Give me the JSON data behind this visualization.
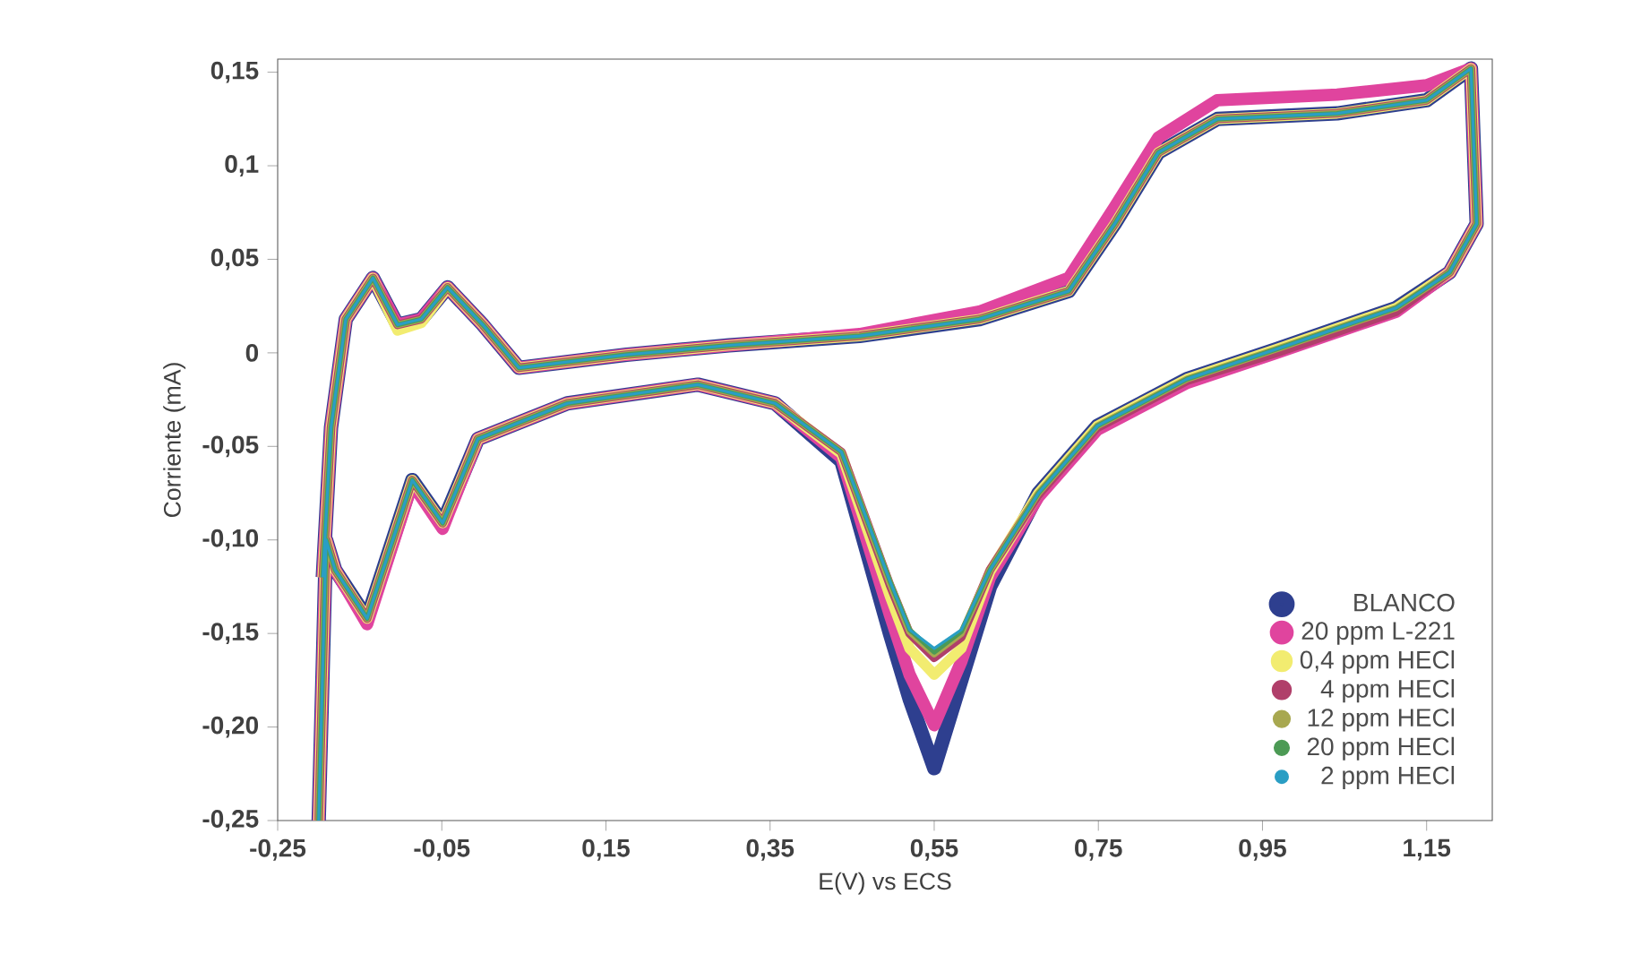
{
  "chart_data": {
    "type": "line",
    "xlabel": "E(V) vs ECS",
    "ylabel": "Corriente (mA)",
    "xlim": [
      -0.25,
      1.23
    ],
    "ylim": [
      -0.25,
      0.157
    ],
    "xticks": [
      {
        "value": -0.25,
        "label": "-0,25"
      },
      {
        "value": -0.05,
        "label": "-0,05"
      },
      {
        "value": 0.15,
        "label": "0,15"
      },
      {
        "value": 0.35,
        "label": "0,35"
      },
      {
        "value": 0.55,
        "label": "0,55"
      },
      {
        "value": 0.75,
        "label": "0,75"
      },
      {
        "value": 0.95,
        "label": "0,95"
      },
      {
        "value": 1.15,
        "label": "1,15"
      }
    ],
    "yticks": [
      {
        "value": 0.15,
        "label": "0,15"
      },
      {
        "value": 0.1,
        "label": "0,1"
      },
      {
        "value": 0.05,
        "label": "0,05"
      },
      0,
      {
        "value": -0.05,
        "label": "-0,05"
      },
      {
        "value": -0.1,
        "label": "-0,10"
      },
      {
        "value": -0.15,
        "label": "-0,15"
      },
      {
        "value": -0.2,
        "label": "-0,20"
      },
      {
        "value": -0.25,
        "label": "-0,25"
      }
    ],
    "x": [
      -0.195,
      -0.185,
      -0.167,
      -0.134,
      -0.104,
      -0.075,
      -0.043,
      0.0,
      0.044,
      0.175,
      0.3,
      0.459,
      0.605,
      0.714,
      0.77,
      0.823,
      0.895,
      1.041,
      1.15,
      1.204,
      1.211,
      1.178,
      1.113,
      0.967,
      0.858,
      0.749,
      0.677,
      0.618,
      0.583,
      0.55,
      0.52,
      0.496,
      0.437,
      0.356,
      0.262,
      0.103,
      -0.006,
      -0.049,
      -0.086,
      -0.141,
      -0.18,
      -0.191,
      -0.2
    ],
    "legend": "bottom right",
    "grid": false,
    "series": [
      {
        "name": "BLANCO",
        "color": "#2e3f8f",
        "values": [
          -0.12,
          -0.04,
          0.018,
          0.04,
          0.015,
          0.018,
          0.035,
          0.015,
          -0.008,
          -0.001,
          0.004,
          0.009,
          0.018,
          0.033,
          0.069,
          0.107,
          0.125,
          0.128,
          0.135,
          0.152,
          0.069,
          0.043,
          0.024,
          0.002,
          -0.014,
          -0.039,
          -0.075,
          -0.125,
          -0.175,
          -0.222,
          -0.185,
          -0.15,
          -0.058,
          -0.027,
          -0.017,
          -0.027,
          -0.046,
          -0.091,
          -0.068,
          -0.142,
          -0.116,
          -0.1,
          -0.25
        ]
      },
      {
        "name": "20 ppm L-221",
        "color": "#e0449e",
        "values": [
          -0.12,
          -0.04,
          0.018,
          0.04,
          0.015,
          0.018,
          0.035,
          0.015,
          -0.008,
          -0.001,
          0.004,
          0.01,
          0.022,
          0.04,
          0.078,
          0.115,
          0.135,
          0.138,
          0.143,
          0.152,
          0.069,
          0.043,
          0.022,
          0.0,
          -0.016,
          -0.041,
          -0.077,
          -0.12,
          -0.165,
          -0.199,
          -0.172,
          -0.14,
          -0.056,
          -0.027,
          -0.017,
          -0.027,
          -0.046,
          -0.094,
          -0.07,
          -0.145,
          -0.116,
          -0.1,
          -0.25
        ]
      },
      {
        "name": "0,4 ppm HECl",
        "color": "#f2ec70",
        "values": [
          -0.12,
          -0.04,
          0.018,
          0.04,
          0.012,
          0.016,
          0.035,
          0.015,
          -0.008,
          -0.001,
          0.004,
          0.009,
          0.018,
          0.033,
          0.069,
          0.107,
          0.125,
          0.128,
          0.135,
          0.152,
          0.069,
          0.043,
          0.024,
          0.002,
          -0.014,
          -0.039,
          -0.075,
          -0.117,
          -0.158,
          -0.172,
          -0.158,
          -0.13,
          -0.054,
          -0.027,
          -0.017,
          -0.027,
          -0.046,
          -0.091,
          -0.068,
          -0.142,
          -0.116,
          -0.1,
          -0.25
        ]
      },
      {
        "name": "4 ppm HECl",
        "color": "#b03f6a",
        "values": [
          -0.12,
          -0.04,
          0.018,
          0.04,
          0.015,
          0.018,
          0.035,
          0.015,
          -0.008,
          -0.001,
          0.004,
          0.009,
          0.018,
          0.033,
          0.069,
          0.107,
          0.125,
          0.128,
          0.135,
          0.152,
          0.069,
          0.043,
          0.022,
          0.0,
          -0.015,
          -0.04,
          -0.076,
          -0.116,
          -0.152,
          -0.163,
          -0.15,
          -0.124,
          -0.053,
          -0.027,
          -0.017,
          -0.027,
          -0.046,
          -0.091,
          -0.068,
          -0.142,
          -0.116,
          -0.1,
          -0.25
        ]
      },
      {
        "name": "12 ppm HECl",
        "color": "#a8a850",
        "values": [
          -0.12,
          -0.04,
          0.018,
          0.04,
          0.015,
          0.018,
          0.035,
          0.015,
          -0.008,
          -0.001,
          0.004,
          0.009,
          0.018,
          0.033,
          0.069,
          0.107,
          0.125,
          0.128,
          0.135,
          0.152,
          0.069,
          0.043,
          0.024,
          0.002,
          -0.014,
          -0.039,
          -0.075,
          -0.116,
          -0.15,
          -0.161,
          -0.149,
          -0.123,
          -0.053,
          -0.027,
          -0.017,
          -0.027,
          -0.046,
          -0.091,
          -0.068,
          -0.142,
          -0.116,
          -0.1,
          -0.25
        ]
      },
      {
        "name": "20 ppm HECl",
        "color": "#4c9a55",
        "values": [
          -0.12,
          -0.04,
          0.018,
          0.04,
          0.015,
          0.018,
          0.035,
          0.015,
          -0.008,
          -0.001,
          0.004,
          0.009,
          0.018,
          0.033,
          0.069,
          0.107,
          0.125,
          0.128,
          0.135,
          0.152,
          0.069,
          0.043,
          0.024,
          0.002,
          -0.014,
          -0.039,
          -0.075,
          -0.116,
          -0.149,
          -0.16,
          -0.148,
          -0.122,
          -0.053,
          -0.027,
          -0.017,
          -0.027,
          -0.046,
          -0.091,
          -0.068,
          -0.142,
          -0.116,
          -0.1,
          -0.25
        ]
      },
      {
        "name": "2 ppm HECl",
        "color": "#2a9ec4",
        "values": [
          -0.12,
          -0.04,
          0.018,
          0.04,
          0.015,
          0.018,
          0.035,
          0.015,
          -0.008,
          -0.001,
          0.004,
          0.009,
          0.018,
          0.033,
          0.069,
          0.107,
          0.125,
          0.128,
          0.135,
          0.152,
          0.069,
          0.043,
          0.024,
          0.002,
          -0.014,
          -0.039,
          -0.075,
          -0.116,
          -0.148,
          -0.158,
          -0.148,
          -0.122,
          -0.053,
          -0.027,
          -0.017,
          -0.027,
          -0.046,
          -0.091,
          -0.068,
          -0.142,
          -0.116,
          -0.1,
          -0.25
        ]
      }
    ]
  }
}
